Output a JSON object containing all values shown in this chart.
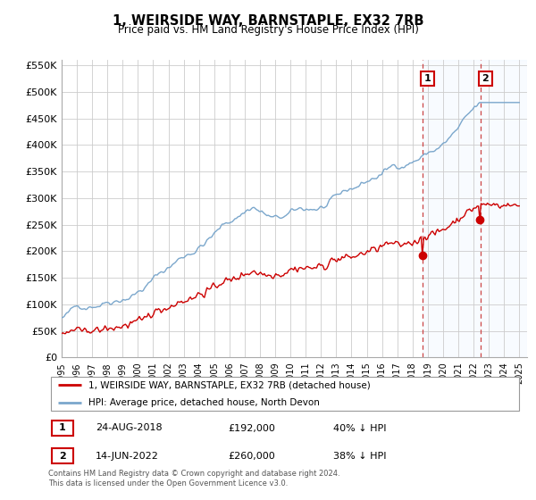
{
  "title": "1, WEIRSIDE WAY, BARNSTAPLE, EX32 7RB",
  "subtitle": "Price paid vs. HM Land Registry's House Price Index (HPI)",
  "legend_label_red": "1, WEIRSIDE WAY, BARNSTAPLE, EX32 7RB (detached house)",
  "legend_label_blue": "HPI: Average price, detached house, North Devon",
  "transaction1_label": "1",
  "transaction1_date": "24-AUG-2018",
  "transaction1_price": "£192,000",
  "transaction1_hpi": "40% ↓ HPI",
  "transaction2_label": "2",
  "transaction2_date": "14-JUN-2022",
  "transaction2_price": "£260,000",
  "transaction2_hpi": "38% ↓ HPI",
  "footer": "Contains HM Land Registry data © Crown copyright and database right 2024.\nThis data is licensed under the Open Government Licence v3.0.",
  "red_color": "#cc0000",
  "blue_color": "#7ba7cc",
  "shade_color": "#ddeeff",
  "vline_color": "#cc4444",
  "grid_color": "#cccccc",
  "ylim": [
    0,
    560000
  ],
  "yticks": [
    0,
    50000,
    100000,
    150000,
    200000,
    250000,
    300000,
    350000,
    400000,
    450000,
    500000,
    550000
  ],
  "start_year": 1995,
  "end_year": 2025,
  "t1_year": 2018.647,
  "t2_year": 2022.451,
  "t1_price": 192000,
  "t2_price": 260000
}
